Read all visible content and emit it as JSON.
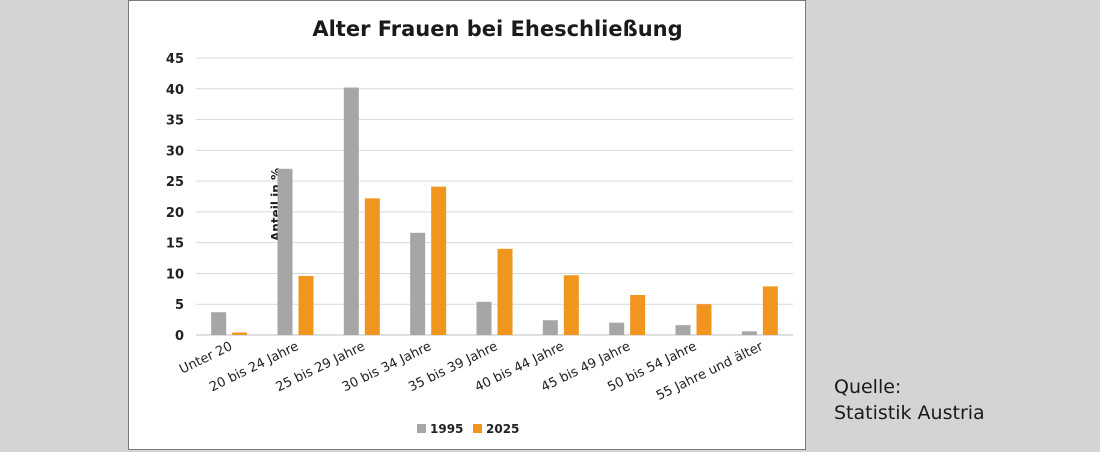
{
  "source": {
    "line1": "Quelle:",
    "line2": "Statistik Austria"
  },
  "chart_data": {
    "type": "bar",
    "title": "Alter Frauen bei Eheschließung",
    "xlabel": "",
    "ylabel": "Anteil in %",
    "ylim": [
      0,
      45
    ],
    "yticks": [
      0,
      5,
      10,
      15,
      20,
      25,
      30,
      35,
      40,
      45
    ],
    "grid": true,
    "legend_position": "bottom",
    "categories": [
      "Unter 20",
      "20 bis 24 Jahre",
      "25 bis 29 Jahre",
      "30 bis 34 Jahre",
      "35 bis 39 Jahre",
      "40 bis 44 Jahre",
      "45 bis 49 Jahre",
      "50 bis 54 Jahre",
      "55 Jahre und älter"
    ],
    "series": [
      {
        "name": "1995",
        "color": "#a6a6a6",
        "values": [
          3.7,
          27.0,
          40.2,
          16.6,
          5.4,
          2.4,
          2.0,
          1.6,
          0.6
        ]
      },
      {
        "name": "2025",
        "color": "#f0961e",
        "values": [
          0.4,
          9.6,
          22.2,
          24.1,
          14.0,
          9.7,
          6.5,
          5.0,
          7.9
        ]
      }
    ]
  }
}
